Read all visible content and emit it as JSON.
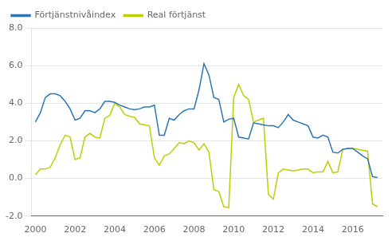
{
  "chart_data": {
    "type": "line",
    "x": [
      2000.0,
      2000.25,
      2000.5,
      2000.75,
      2001.0,
      2001.25,
      2001.5,
      2001.75,
      2002.0,
      2002.25,
      2002.5,
      2002.75,
      2003.0,
      2003.25,
      2003.5,
      2003.75,
      2004.0,
      2004.25,
      2004.5,
      2004.75,
      2005.0,
      2005.25,
      2005.5,
      2005.75,
      2006.0,
      2006.25,
      2006.5,
      2006.75,
      2007.0,
      2007.25,
      2007.5,
      2007.75,
      2008.0,
      2008.25,
      2008.5,
      2008.75,
      2009.0,
      2009.25,
      2009.5,
      2009.75,
      2010.0,
      2010.25,
      2010.5,
      2010.75,
      2011.0,
      2011.25,
      2011.5,
      2011.75,
      2012.0,
      2012.25,
      2012.5,
      2012.75,
      2013.0,
      2013.25,
      2013.5,
      2013.75,
      2014.0,
      2014.25,
      2014.5,
      2014.75,
      2015.0,
      2015.25,
      2015.5,
      2015.75,
      2016.0,
      2016.25,
      2016.5,
      2016.75,
      2017.0,
      2017.25
    ],
    "series": [
      {
        "name": "Förtjänstnivåindex",
        "color": "#2E75B6",
        "values": [
          3.0,
          3.5,
          4.3,
          4.5,
          4.5,
          4.4,
          4.1,
          3.7,
          3.1,
          3.2,
          3.6,
          3.6,
          3.5,
          3.7,
          4.1,
          4.1,
          4.05,
          3.9,
          3.8,
          3.7,
          3.65,
          3.7,
          3.8,
          3.8,
          3.9,
          2.3,
          2.3,
          3.2,
          3.1,
          3.4,
          3.6,
          3.7,
          3.7,
          4.7,
          6.1,
          5.5,
          4.3,
          4.2,
          3.0,
          3.15,
          3.2,
          2.2,
          2.15,
          2.1,
          2.95,
          2.9,
          2.85,
          2.8,
          2.8,
          2.7,
          3.0,
          3.4,
          3.1,
          3.0,
          2.9,
          2.8,
          2.2,
          2.15,
          2.3,
          2.2,
          1.4,
          1.35,
          1.55,
          1.6,
          1.6,
          1.4,
          1.2,
          1.05,
          0.1,
          0.05
        ]
      },
      {
        "name": "Real förtjänst",
        "color": "#BCCF00",
        "values": [
          0.2,
          0.5,
          0.5,
          0.6,
          1.1,
          1.8,
          2.3,
          2.2,
          1.0,
          1.1,
          2.2,
          2.4,
          2.2,
          2.15,
          3.2,
          3.35,
          4.0,
          3.8,
          3.4,
          3.3,
          3.25,
          2.9,
          2.85,
          2.8,
          1.1,
          0.7,
          1.2,
          1.3,
          1.6,
          1.9,
          1.85,
          2.0,
          1.9,
          1.5,
          1.85,
          1.4,
          -0.6,
          -0.7,
          -1.5,
          -1.55,
          4.3,
          5.0,
          4.4,
          4.2,
          3.0,
          3.1,
          3.2,
          -0.85,
          -1.1,
          0.3,
          0.5,
          0.45,
          0.4,
          0.45,
          0.5,
          0.5,
          0.3,
          0.35,
          0.35,
          0.9,
          0.3,
          0.35,
          1.55,
          1.6,
          1.6,
          1.55,
          1.5,
          1.45,
          -1.35,
          -1.5
        ]
      }
    ],
    "xlim": [
      1999.8,
      2017.5
    ],
    "xticks": [
      2000,
      2002,
      2004,
      2006,
      2008,
      2010,
      2012,
      2014,
      2016
    ],
    "ylim": [
      -2.0,
      8.0
    ],
    "yticks": [
      {
        "value": -2.0,
        "label": "-2.0"
      },
      {
        "value": 0.0,
        "label": "0.0"
      },
      {
        "value": 2.0,
        "label": "2.0"
      },
      {
        "value": 4.0,
        "label": "4.0"
      },
      {
        "value": 6.0,
        "label": "6.0"
      },
      {
        "value": 8.0,
        "label": "8.0"
      }
    ],
    "grid": "y",
    "legend": "upper left"
  }
}
